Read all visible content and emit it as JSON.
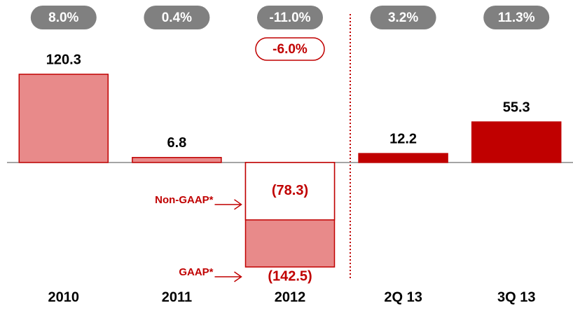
{
  "chart_data": {
    "type": "bar",
    "categories": [
      "2010",
      "2011",
      "2012",
      "2Q 13",
      "3Q 13"
    ],
    "series": [
      {
        "name": "GAAP*",
        "values": [
          120.3,
          6.8,
          -142.5,
          12.2,
          55.3
        ],
        "value_labels": [
          "120.3",
          "6.8",
          "(142.5)",
          "12.2",
          "55.3"
        ],
        "colors": [
          "#e88a8a",
          "#e88a8a",
          "#e88a8a",
          "#c00000",
          "#c00000"
        ],
        "margins": [
          "8.0%",
          "0.4%",
          "-11.0%",
          "3.2%",
          "11.3%"
        ]
      },
      {
        "name": "Non-GAAP*",
        "values": [
          null,
          null,
          -78.3,
          null,
          null
        ],
        "value_labels": [
          null,
          null,
          "(78.3)",
          null,
          null
        ],
        "color": "#ffffff",
        "margins": [
          null,
          null,
          "-6.0%",
          null,
          null
        ]
      }
    ]
  }
}
